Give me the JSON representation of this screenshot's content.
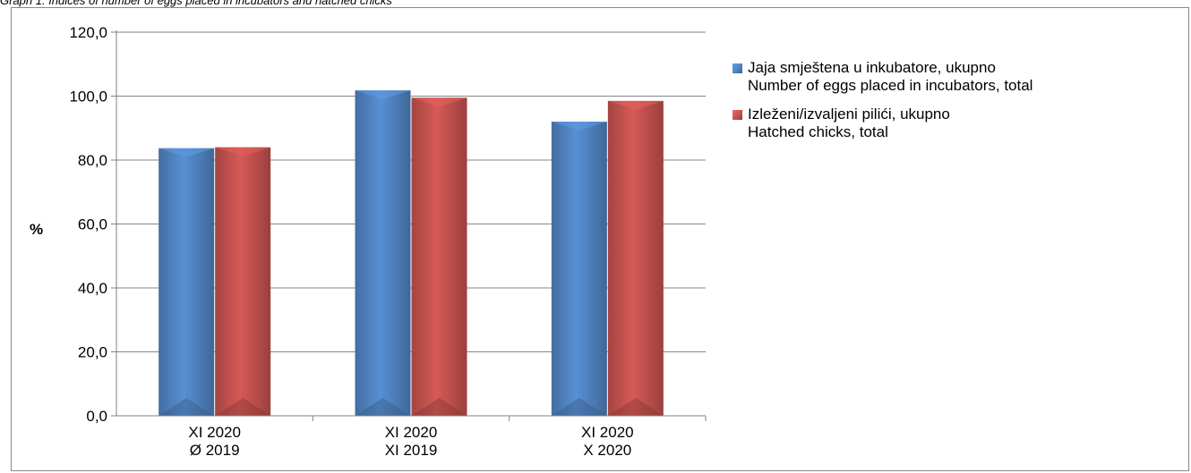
{
  "caption": "Graph 1. Indices of number of eggs placed in incubators and hatched chicks",
  "chart_data": {
    "type": "bar",
    "ylabel": "%",
    "ylim": [
      0,
      120
    ],
    "yticks": [
      "0,0",
      "20,0",
      "40,0",
      "60,0",
      "80,0",
      "100,0",
      "120,0"
    ],
    "categories": [
      [
        "XI 2020",
        "Ø 2019"
      ],
      [
        "XI 2020",
        "XI 2019"
      ],
      [
        "XI 2020",
        "X 2020"
      ]
    ],
    "series": [
      {
        "name": "Jaja smještena u inkubatore, ukupno",
        "name_en": "Number  of eggs placed in incubators, total",
        "color": "#4f81bd",
        "values": [
          83.7,
          101.8,
          92.0
        ]
      },
      {
        "name": "Izleženi/izvaljeni pilići, ukupno",
        "name_en": "Hatched chicks, total",
        "color": "#c0504d",
        "values": [
          84.0,
          99.5,
          98.5
        ]
      }
    ],
    "grid": true,
    "legend": "right"
  }
}
